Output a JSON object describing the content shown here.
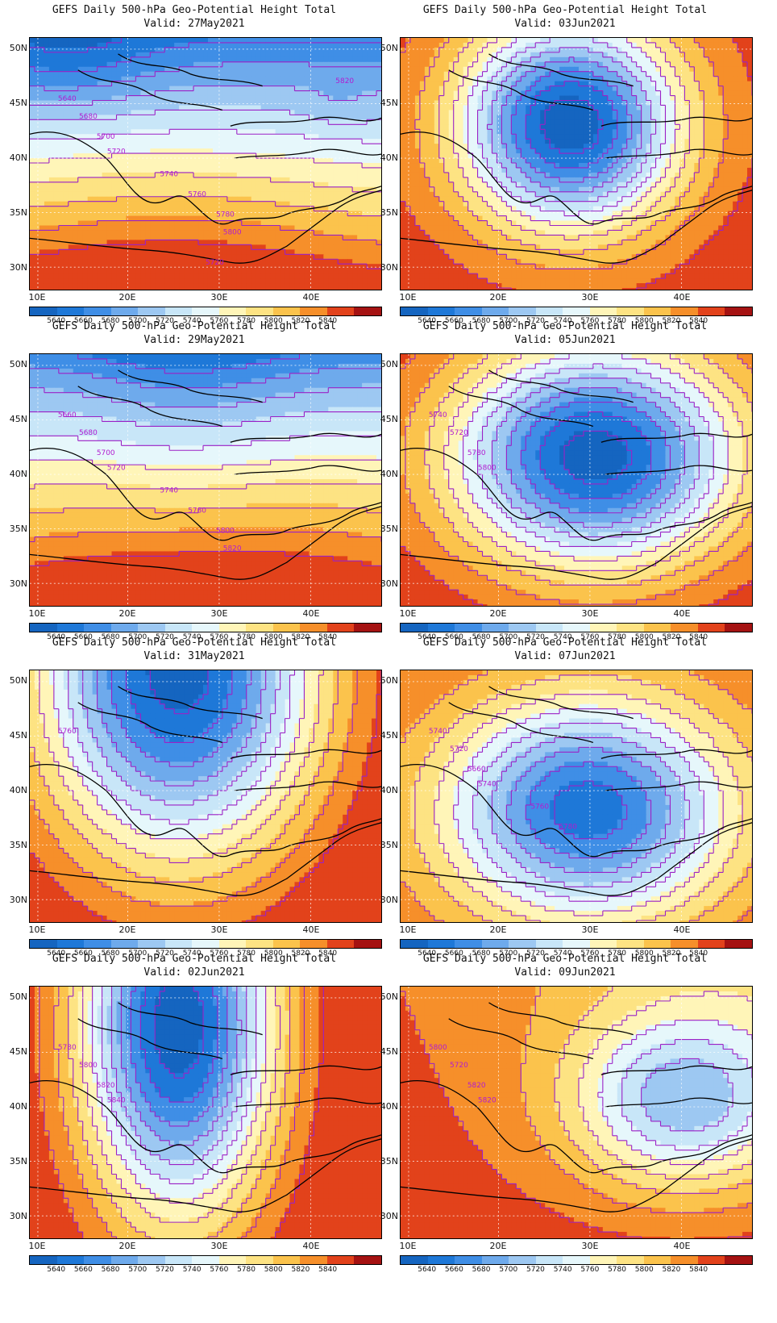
{
  "title": "GEFS Daily 500-hPa Geo-Potential Height Total",
  "palette": [
    "#1565c0",
    "#1e78d8",
    "#3f8ee6",
    "#6eaaec",
    "#9dc8f2",
    "#c8e6f8",
    "#e6f7fb",
    "#fff5b8",
    "#fde383",
    "#fbc34c",
    "#f68f2a",
    "#e2421b",
    "#a51212"
  ],
  "colorbar_labels": [
    "5640",
    "5660",
    "5680",
    "5700",
    "5720",
    "5740",
    "5760",
    "5780",
    "5800",
    "5820",
    "5840"
  ],
  "lat_labels": [
    "50N",
    "45N",
    "40N",
    "35N",
    "30N"
  ],
  "lon_labels": [
    "10E",
    "20E",
    "30E",
    "40E"
  ],
  "panels": [
    {
      "valid": "Valid: 27May2021",
      "pattern": "zonal_trough_north",
      "contour_labels": [
        "5640",
        "5680",
        "5700",
        "5720",
        "5740",
        "5760",
        "5780",
        "5800",
        "5820",
        "5720"
      ]
    },
    {
      "valid": "Valid: 03Jun2021",
      "pattern": "cutoff_low_deep",
      "contour_labels": []
    },
    {
      "valid": "Valid: 29May2021",
      "pattern": "trough_north_ridge_south",
      "contour_labels": [
        "5660",
        "5680",
        "5700",
        "5720",
        "5740",
        "5780",
        "5800",
        "5820"
      ]
    },
    {
      "valid": "Valid: 05Jun2021",
      "pattern": "cutoff_low_broad",
      "contour_labels": [
        "5740",
        "5720",
        "5780",
        "5800"
      ]
    },
    {
      "valid": "Valid: 31May2021",
      "pattern": "trough_central",
      "contour_labels": [
        "5760"
      ]
    },
    {
      "valid": "Valid: 07Jun2021",
      "pattern": "cutoff_low_south",
      "contour_labels": [
        "5740",
        "5720",
        "5660",
        "5740",
        "5760",
        "5780"
      ]
    },
    {
      "valid": "Valid: 02Jun2021",
      "pattern": "trough_deep",
      "contour_labels": [
        "5780",
        "5800",
        "5820",
        "5840"
      ]
    },
    {
      "valid": "Valid: 09Jun2021",
      "pattern": "weak_low_east",
      "contour_labels": [
        "5800",
        "5720",
        "5820",
        "5820"
      ]
    }
  ],
  "chart_data": [
    {
      "type": "heatmap",
      "title": "GEFS Daily 500-hPa Geo-Potential Height Total",
      "subtitle": "Valid: 27May2021",
      "x_range": [
        9,
        46
      ],
      "y_range": [
        29,
        51
      ],
      "color_levels": [
        5640,
        5660,
        5680,
        5700,
        5720,
        5740,
        5760,
        5780,
        5800,
        5820,
        5840
      ],
      "features": {
        "low_center": [
          15,
          49
        ],
        "low_value": 5630,
        "secondary_low": [
          41,
          44.5
        ],
        "secondary_low_value": 5715,
        "south_value": 5850
      }
    },
    {
      "type": "heatmap",
      "title": "GEFS Daily 500-hPa Geo-Potential Height Total",
      "subtitle": "Valid: 03Jun2021",
      "x_range": [
        9,
        46
      ],
      "y_range": [
        29,
        51
      ],
      "color_levels": [
        5640,
        5660,
        5680,
        5700,
        5720,
        5740,
        5760,
        5780,
        5800,
        5820,
        5840
      ],
      "features": {
        "low_center": [
          28,
          42.5
        ],
        "low_value": 5630,
        "edge_value": 5850
      }
    },
    {
      "type": "heatmap",
      "title": "GEFS Daily 500-hPa Geo-Potential Height Total",
      "subtitle": "Valid: 29May2021",
      "x_range": [
        9,
        46
      ],
      "y_range": [
        29,
        51
      ],
      "color_levels": [
        5640,
        5660,
        5680,
        5700,
        5720,
        5740,
        5760,
        5780,
        5800,
        5820,
        5840
      ],
      "features": {
        "low_center": [
          24,
          49.5
        ],
        "low_value": 5630,
        "south_value": 5850
      }
    },
    {
      "type": "heatmap",
      "title": "GEFS Daily 500-hPa Geo-Potential Height Total",
      "subtitle": "Valid: 05Jun2021",
      "x_range": [
        9,
        46
      ],
      "y_range": [
        29,
        51
      ],
      "color_levels": [
        5640,
        5660,
        5680,
        5700,
        5720,
        5740,
        5760,
        5780,
        5800,
        5820,
        5840
      ],
      "features": {
        "low_center": [
          30,
          42
        ],
        "low_value": 5630,
        "edge_value": 5850
      }
    },
    {
      "type": "heatmap",
      "title": "GEFS Daily 500-hPa Geo-Potential Height Total",
      "subtitle": "Valid: 31May2021",
      "x_range": [
        9,
        46
      ],
      "y_range": [
        29,
        51
      ],
      "color_levels": [
        5640,
        5660,
        5680,
        5700,
        5720,
        5740,
        5760,
        5780,
        5800,
        5820,
        5840
      ],
      "features": {
        "low_center": [
          26,
          48
        ],
        "low_value": 5630,
        "south_value": 5850
      }
    },
    {
      "type": "heatmap",
      "title": "GEFS Daily 500-hPa Geo-Potential Height Total",
      "subtitle": "Valid: 07Jun2021",
      "x_range": [
        9,
        46
      ],
      "y_range": [
        29,
        51
      ],
      "color_levels": [
        5640,
        5660,
        5680,
        5700,
        5720,
        5740,
        5760,
        5780,
        5800,
        5820,
        5840
      ],
      "features": {
        "low_center": [
          29,
          40
        ],
        "low_value": 5650,
        "edge_value": 5840
      }
    },
    {
      "type": "heatmap",
      "title": "GEFS Daily 500-hPa Geo-Potential Height Total",
      "subtitle": "Valid: 02Jun2021",
      "x_range": [
        9,
        46
      ],
      "y_range": [
        29,
        51
      ],
      "color_levels": [
        5640,
        5660,
        5680,
        5700,
        5720,
        5740,
        5760,
        5780,
        5800,
        5820,
        5840
      ],
      "features": {
        "low_center": [
          25,
          46
        ],
        "low_value": 5630,
        "edge_value": 5850
      }
    },
    {
      "type": "heatmap",
      "title": "GEFS Daily 500-hPa Geo-Potential Height Total",
      "subtitle": "Valid: 09Jun2021",
      "x_range": [
        9,
        46
      ],
      "y_range": [
        29,
        51
      ],
      "color_levels": [
        5640,
        5660,
        5680,
        5700,
        5720,
        5740,
        5760,
        5780,
        5800,
        5820,
        5840
      ],
      "features": {
        "low_center": [
          39,
          42.5
        ],
        "low_value": 5715,
        "edge_value": 5840
      }
    }
  ]
}
